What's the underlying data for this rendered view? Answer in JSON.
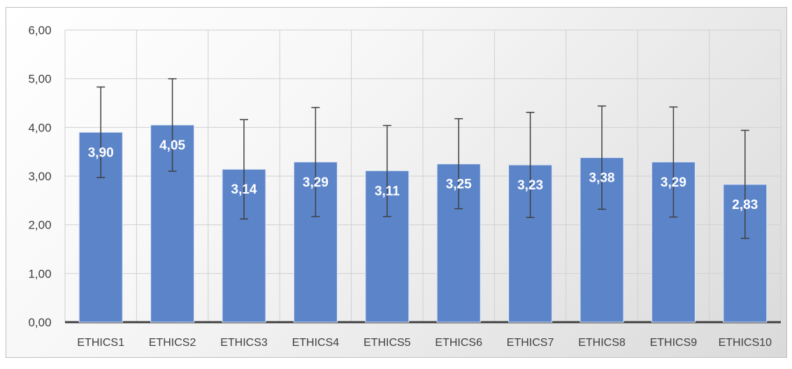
{
  "chart_data": {
    "type": "bar",
    "categories": [
      "ETHICS1",
      "ETHICS2",
      "ETHICS3",
      "ETHICS4",
      "ETHICS5",
      "ETHICS6",
      "ETHICS7",
      "ETHICS8",
      "ETHICS9",
      "ETHICS10"
    ],
    "values": [
      3.9,
      4.05,
      3.14,
      3.29,
      3.11,
      3.25,
      3.23,
      3.38,
      3.29,
      2.83
    ],
    "value_labels": [
      "3,90",
      "4,05",
      "3,14",
      "3,29",
      "3,11",
      "3,25",
      "3,23",
      "3,38",
      "3,29",
      "2,83"
    ],
    "error_bars": {
      "low": [
        2.97,
        3.1,
        2.12,
        2.17,
        2.17,
        2.33,
        2.15,
        2.32,
        2.16,
        1.72
      ],
      "high": [
        4.83,
        5.0,
        4.16,
        4.41,
        4.04,
        4.18,
        4.31,
        4.44,
        4.42,
        3.94
      ]
    },
    "ylim": [
      0,
      6
    ],
    "yticks": [
      0,
      1,
      2,
      3,
      4,
      5,
      6
    ],
    "ytick_labels": [
      "0,00",
      "1,00",
      "2,00",
      "3,00",
      "4,00",
      "5,00",
      "6,00"
    ],
    "title": "",
    "xlabel": "",
    "ylabel": "",
    "grid": true,
    "legend": "none",
    "colors": {
      "bar": "#5b84c9",
      "bar_edge": "#dfe7f5",
      "error_bar": "#404040",
      "grid": "#d0d0d0",
      "axis": "#404040",
      "label": "#ffffff"
    }
  }
}
